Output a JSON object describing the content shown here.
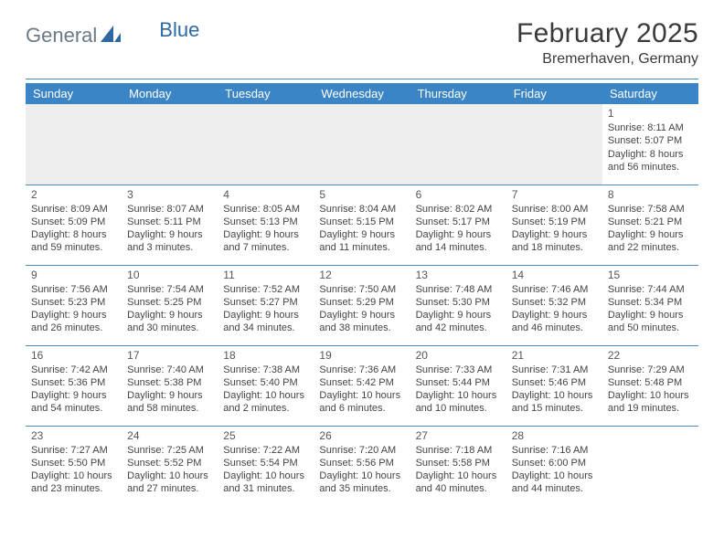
{
  "brand": {
    "part1": "General",
    "part2": "Blue"
  },
  "title": "February 2025",
  "subtitle": "Bremerhaven, Germany",
  "colors": {
    "header_bg": "#3b85c6",
    "rule": "#4c8cc4",
    "brand_gray": "#6b7a84",
    "brand_blue": "#2d6aa3",
    "text": "#333333",
    "background": "#ffffff",
    "empty_row_bg": "#eeeeee"
  },
  "typography": {
    "title_fontsize": 30,
    "subtitle_fontsize": 16,
    "dayheader_fontsize": 13,
    "cell_fontsize": 11,
    "daynum_fontsize": 12
  },
  "dayHeaders": [
    "Sunday",
    "Monday",
    "Tuesday",
    "Wednesday",
    "Thursday",
    "Friday",
    "Saturday"
  ],
  "weeks": [
    [
      null,
      null,
      null,
      null,
      null,
      null,
      {
        "n": "1",
        "sr": "Sunrise: 8:11 AM",
        "ss": "Sunset: 5:07 PM",
        "dl1": "Daylight: 8 hours",
        "dl2": "and 56 minutes."
      }
    ],
    [
      {
        "n": "2",
        "sr": "Sunrise: 8:09 AM",
        "ss": "Sunset: 5:09 PM",
        "dl1": "Daylight: 8 hours",
        "dl2": "and 59 minutes."
      },
      {
        "n": "3",
        "sr": "Sunrise: 8:07 AM",
        "ss": "Sunset: 5:11 PM",
        "dl1": "Daylight: 9 hours",
        "dl2": "and 3 minutes."
      },
      {
        "n": "4",
        "sr": "Sunrise: 8:05 AM",
        "ss": "Sunset: 5:13 PM",
        "dl1": "Daylight: 9 hours",
        "dl2": "and 7 minutes."
      },
      {
        "n": "5",
        "sr": "Sunrise: 8:04 AM",
        "ss": "Sunset: 5:15 PM",
        "dl1": "Daylight: 9 hours",
        "dl2": "and 11 minutes."
      },
      {
        "n": "6",
        "sr": "Sunrise: 8:02 AM",
        "ss": "Sunset: 5:17 PM",
        "dl1": "Daylight: 9 hours",
        "dl2": "and 14 minutes."
      },
      {
        "n": "7",
        "sr": "Sunrise: 8:00 AM",
        "ss": "Sunset: 5:19 PM",
        "dl1": "Daylight: 9 hours",
        "dl2": "and 18 minutes."
      },
      {
        "n": "8",
        "sr": "Sunrise: 7:58 AM",
        "ss": "Sunset: 5:21 PM",
        "dl1": "Daylight: 9 hours",
        "dl2": "and 22 minutes."
      }
    ],
    [
      {
        "n": "9",
        "sr": "Sunrise: 7:56 AM",
        "ss": "Sunset: 5:23 PM",
        "dl1": "Daylight: 9 hours",
        "dl2": "and 26 minutes."
      },
      {
        "n": "10",
        "sr": "Sunrise: 7:54 AM",
        "ss": "Sunset: 5:25 PM",
        "dl1": "Daylight: 9 hours",
        "dl2": "and 30 minutes."
      },
      {
        "n": "11",
        "sr": "Sunrise: 7:52 AM",
        "ss": "Sunset: 5:27 PM",
        "dl1": "Daylight: 9 hours",
        "dl2": "and 34 minutes."
      },
      {
        "n": "12",
        "sr": "Sunrise: 7:50 AM",
        "ss": "Sunset: 5:29 PM",
        "dl1": "Daylight: 9 hours",
        "dl2": "and 38 minutes."
      },
      {
        "n": "13",
        "sr": "Sunrise: 7:48 AM",
        "ss": "Sunset: 5:30 PM",
        "dl1": "Daylight: 9 hours",
        "dl2": "and 42 minutes."
      },
      {
        "n": "14",
        "sr": "Sunrise: 7:46 AM",
        "ss": "Sunset: 5:32 PM",
        "dl1": "Daylight: 9 hours",
        "dl2": "and 46 minutes."
      },
      {
        "n": "15",
        "sr": "Sunrise: 7:44 AM",
        "ss": "Sunset: 5:34 PM",
        "dl1": "Daylight: 9 hours",
        "dl2": "and 50 minutes."
      }
    ],
    [
      {
        "n": "16",
        "sr": "Sunrise: 7:42 AM",
        "ss": "Sunset: 5:36 PM",
        "dl1": "Daylight: 9 hours",
        "dl2": "and 54 minutes."
      },
      {
        "n": "17",
        "sr": "Sunrise: 7:40 AM",
        "ss": "Sunset: 5:38 PM",
        "dl1": "Daylight: 9 hours",
        "dl2": "and 58 minutes."
      },
      {
        "n": "18",
        "sr": "Sunrise: 7:38 AM",
        "ss": "Sunset: 5:40 PM",
        "dl1": "Daylight: 10 hours",
        "dl2": "and 2 minutes."
      },
      {
        "n": "19",
        "sr": "Sunrise: 7:36 AM",
        "ss": "Sunset: 5:42 PM",
        "dl1": "Daylight: 10 hours",
        "dl2": "and 6 minutes."
      },
      {
        "n": "20",
        "sr": "Sunrise: 7:33 AM",
        "ss": "Sunset: 5:44 PM",
        "dl1": "Daylight: 10 hours",
        "dl2": "and 10 minutes."
      },
      {
        "n": "21",
        "sr": "Sunrise: 7:31 AM",
        "ss": "Sunset: 5:46 PM",
        "dl1": "Daylight: 10 hours",
        "dl2": "and 15 minutes."
      },
      {
        "n": "22",
        "sr": "Sunrise: 7:29 AM",
        "ss": "Sunset: 5:48 PM",
        "dl1": "Daylight: 10 hours",
        "dl2": "and 19 minutes."
      }
    ],
    [
      {
        "n": "23",
        "sr": "Sunrise: 7:27 AM",
        "ss": "Sunset: 5:50 PM",
        "dl1": "Daylight: 10 hours",
        "dl2": "and 23 minutes."
      },
      {
        "n": "24",
        "sr": "Sunrise: 7:25 AM",
        "ss": "Sunset: 5:52 PM",
        "dl1": "Daylight: 10 hours",
        "dl2": "and 27 minutes."
      },
      {
        "n": "25",
        "sr": "Sunrise: 7:22 AM",
        "ss": "Sunset: 5:54 PM",
        "dl1": "Daylight: 10 hours",
        "dl2": "and 31 minutes."
      },
      {
        "n": "26",
        "sr": "Sunrise: 7:20 AM",
        "ss": "Sunset: 5:56 PM",
        "dl1": "Daylight: 10 hours",
        "dl2": "and 35 minutes."
      },
      {
        "n": "27",
        "sr": "Sunrise: 7:18 AM",
        "ss": "Sunset: 5:58 PM",
        "dl1": "Daylight: 10 hours",
        "dl2": "and 40 minutes."
      },
      {
        "n": "28",
        "sr": "Sunrise: 7:16 AM",
        "ss": "Sunset: 6:00 PM",
        "dl1": "Daylight: 10 hours",
        "dl2": "and 44 minutes."
      },
      null
    ]
  ]
}
